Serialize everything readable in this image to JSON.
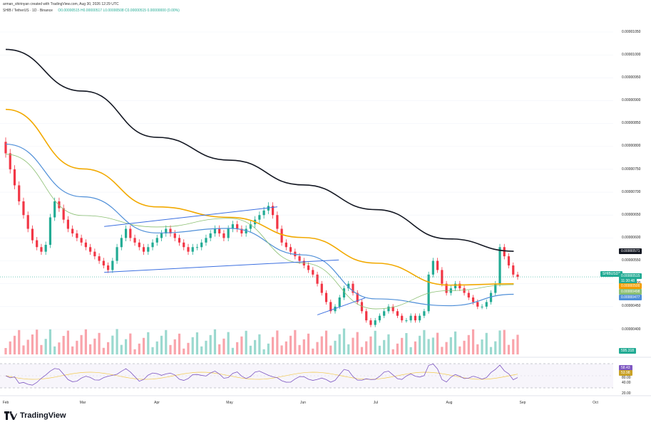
{
  "header": {
    "line1": "arman_shirinyan created with TradingView.com, Aug 30, 2026 12:29 UTC",
    "symbol": "SHIB / TetherUS · 1D · Binance",
    "ohlc": "O0.00000515  H0.00000517  L0.00000508  C0.00000515  0.00000000 (0.00%)"
  },
  "price_axis": [
    "0.00001050",
    "0.00001000",
    "0.00000950",
    "0.00000900",
    "0.00000850",
    "0.00000800",
    "0.00000750",
    "0.00000700",
    "0.00000650",
    "0.00000600",
    "0.00000550",
    "0.00000500",
    "0.00000450",
    "0.00000400"
  ],
  "tags": {
    "ma200": {
      "text": "0.00000571",
      "color": "#131722"
    },
    "symbol": {
      "text": "SHIBUSDT",
      "color": "#22ab94"
    },
    "last": {
      "text": "0.00000515",
      "color": "#22ab94"
    },
    "countdown": {
      "text": "11:30:48",
      "color": "#22ab94"
    },
    "ma50": {
      "text": "0.00000500",
      "color": "#f29d00"
    },
    "ma20": {
      "text": "0.00000498",
      "color": "#8bbf72"
    },
    "ma100": {
      "text": "0.00000477",
      "color": "#4f8fd8"
    },
    "volume": {
      "text": "595.318",
      "color": "#22ab94"
    }
  },
  "rsi": {
    "value1": "58.43",
    "value2": "53.98",
    "levels": [
      "80.00",
      "40.00",
      "20.00"
    ]
  },
  "months": [
    "Feb",
    "Mar",
    "Apr",
    "May",
    "Jun",
    "Jul",
    "Aug",
    "Sep",
    "Oct"
  ],
  "brand": "TradingView",
  "colors": {
    "up": "#22ab94",
    "down": "#f23645",
    "ma200": "#131722",
    "ma50": "#f2a900",
    "ma100": "#4f8fd8",
    "ma20": "#8bbf72",
    "channel": "#3b6fe0",
    "rsi": "#7e57c2"
  },
  "chart_data": {
    "type": "candlestick",
    "title": "SHIB / TetherUS · 1D · Binance",
    "x_range": [
      "Feb",
      "Oct"
    ],
    "ylim": [
      3.9e-06,
      1.06e-05
    ],
    "series": [
      {
        "name": "0.00000571",
        "kind": "line",
        "points": [
          [
            "Feb",
            1.012e-05
          ],
          [
            "Mar",
            9.21e-06
          ],
          [
            "Apr",
            8.2e-06
          ],
          [
            "May",
            7.7e-06
          ],
          [
            "Jun",
            7.16e-06
          ],
          [
            "Jul",
            6.62e-06
          ],
          [
            "Aug",
            5.98e-06
          ],
          [
            "Aug 28",
            5.71e-06
          ]
        ]
      },
      {
        "name": "0.00000500",
        "kind": "line",
        "points": [
          [
            "Feb",
            8.81e-06
          ],
          [
            "Mar",
            7.51e-06
          ],
          [
            "Apr",
            6.68e-06
          ],
          [
            "May",
            6.45e-06
          ],
          [
            "Jun",
            6.01e-06
          ],
          [
            "Jul",
            5.45e-06
          ],
          [
            "Aug",
            4.97e-06
          ],
          [
            "Aug 28",
            5e-06
          ]
        ]
      },
      {
        "name": "0.00000477",
        "kind": "line",
        "points": [
          [
            "Feb",
            8.05e-06
          ],
          [
            "Mar",
            6.9e-06
          ],
          [
            "Apr",
            6.11e-06
          ],
          [
            "May",
            6.21e-06
          ],
          [
            "Jun",
            5.63e-06
          ],
          [
            "Jul",
            4.67e-06
          ],
          [
            "Aug",
            4.52e-06
          ],
          [
            "Aug 28",
            4.77e-06
          ]
        ]
      },
      {
        "name": "0.00000498",
        "kind": "line",
        "points": [
          [
            "Feb",
            7.83e-06
          ],
          [
            "Mar",
            6.49e-06
          ],
          [
            "Apr",
            6.24e-06
          ],
          [
            "May",
            6.43e-06
          ],
          [
            "Jun",
            5.45e-06
          ],
          [
            "Jul",
            4.45e-06
          ],
          [
            "Aug",
            4.85e-06
          ],
          [
            "Aug 28",
            4.98e-06
          ]
        ]
      }
    ],
    "closes": [
      7.85e-06,
      7.5e-06,
      7.15e-06,
      6.8e-06,
      6.5e-06,
      6.2e-06,
      5.95e-06,
      5.8e-06,
      5.7e-06,
      5.85e-06,
      6.45e-06,
      6.8e-06,
      6.65e-06,
      6.4e-06,
      6.2e-06,
      6.1e-06,
      6e-06,
      5.9e-06,
      5.8e-06,
      5.7e-06,
      5.6e-06,
      5.5e-06,
      5.4e-06,
      5.3e-06,
      5.5e-06,
      5.8e-06,
      6e-06,
      6.2e-06,
      6e-06,
      5.9e-06,
      5.8e-06,
      5.7e-06,
      5.8e-06,
      5.9e-06,
      6e-06,
      6.1e-06,
      6.2e-06,
      6.1e-06,
      6e-06,
      5.9e-06,
      5.8e-06,
      5.7e-06,
      5.8e-06,
      5.8e-06,
      5.9e-06,
      6e-06,
      6.1e-06,
      6.2e-06,
      6.1e-06,
      6e-06,
      6.2e-06,
      6.3e-06,
      6.2e-06,
      6.1e-06,
      6.2e-06,
      6.3e-06,
      6.4e-06,
      6.5e-06,
      6.6e-06,
      6.7e-06,
      6.5e-06,
      6.2e-06,
      5.9e-06,
      5.8e-06,
      5.7e-06,
      5.6e-06,
      5.5e-06,
      5.4e-06,
      5.3e-06,
      5.2e-06,
      5e-06,
      4.8e-06,
      4.6e-06,
      4.4e-06,
      4.5e-06,
      4.7e-06,
      4.9e-06,
      5e-06,
      4.8e-06,
      4.6e-06,
      4.4e-06,
      4.2e-06,
      4.1e-06,
      4.2e-06,
      4.3e-06,
      4.4e-06,
      4.5e-06,
      4.4e-06,
      4.3e-06,
      4.2e-06,
      4.2e-06,
      4.3e-06,
      4.2e-06,
      4.3e-06,
      4.4e-06,
      5.2e-06,
      5.5e-06,
      5.3e-06,
      5e-06,
      4.8e-06,
      4.9e-06,
      5e-06,
      4.9e-06,
      4.8e-06,
      4.7e-06,
      4.6e-06,
      4.5e-06,
      4.5e-06,
      4.6e-06,
      4.8e-06,
      5e-06,
      5.8e-06,
      5.6e-06,
      5.4e-06,
      5.2e-06,
      5.15e-06
    ],
    "trendlines": [
      {
        "name": "upper channel",
        "from": [
          "Mar 10",
          6.25e-06
        ],
        "to": [
          "May 21",
          6.68e-06
        ]
      },
      {
        "name": "lower channel",
        "from": [
          "Mar 10",
          5.25e-06
        ],
        "to": [
          "Jun 16",
          5.52e-06
        ]
      },
      {
        "name": "flag lower",
        "from": [
          "Jun 7",
          4.32e-06
        ],
        "to": [
          "Jun 27",
          4.69e-06
        ]
      }
    ]
  }
}
